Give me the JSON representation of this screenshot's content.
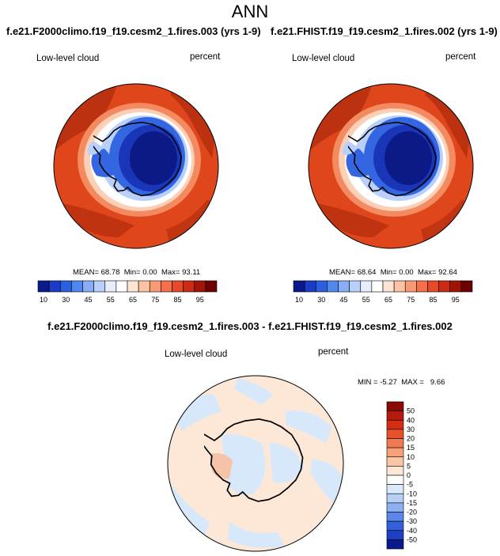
{
  "header": {
    "title": "ANN"
  },
  "panels": [
    {
      "case": "f.e21.F2000climo.f19_f19.cesm2_1.fires.003 (yrs 1-9)",
      "variable": "Low-level cloud",
      "units": "percent",
      "stats": {
        "mean_label": "MEAN=",
        "mean": "68.78",
        "min_label": "Min=",
        "min": "0.00",
        "max_label": "Max=",
        "max": "93.11"
      }
    },
    {
      "case": "f.e21.FHIST.f19_f19.cesm2_1.fires.002 (yrs 1-9)",
      "variable": "Low-level cloud",
      "units": "percent",
      "stats": {
        "mean_label": "MEAN=",
        "mean": "68.64",
        "min_label": "Min=",
        "min": "0.00",
        "max_label": "Max=",
        "max": "92.64"
      }
    }
  ],
  "difference": {
    "title": "f.e21.F2000climo.f19_f19.cesm2_1.fires.003 - f.e21.FHIST.f19_f19.cesm2_1.fires.002",
    "variable": "Low-level cloud",
    "units": "percent",
    "stats": {
      "min_label": "MIN =",
      "min": "-5.27",
      "max_label": "MAX =",
      "max": "9.66"
    }
  },
  "chart_data": [
    {
      "type": "heatmap",
      "projection": "south-polar-stereographic",
      "title": "Low-level cloud",
      "units": "percent",
      "colorbar": {
        "orientation": "horizontal",
        "ticks": [
          "10",
          "30",
          "45",
          "55",
          "65",
          "75",
          "85",
          "95"
        ],
        "colors": [
          "#0a1a8c",
          "#1a3cc8",
          "#2a5fe0",
          "#4f86f0",
          "#86adf5",
          "#b9d0fa",
          "#e6eefc",
          "#ffffff",
          "#fde3d2",
          "#fbc2a3",
          "#f89a73",
          "#f3704a",
          "#e84a28",
          "#cc2a12",
          "#a01408",
          "#6e0202"
        ]
      },
      "stats": {
        "mean": 68.78,
        "min": 0.0,
        "max": 93.11
      },
      "colors": {
        "ocean": "#e0461c",
        "high_band": "#b8300f",
        "antarctic_interior": "#0b1a86",
        "coast": "#3466e2"
      }
    },
    {
      "type": "heatmap",
      "projection": "south-polar-stereographic",
      "title": "Low-level cloud",
      "units": "percent",
      "colorbar": {
        "orientation": "horizontal",
        "ticks": [
          "10",
          "30",
          "45",
          "55",
          "65",
          "75",
          "85",
          "95"
        ],
        "colors": [
          "#0a1a8c",
          "#1a3cc8",
          "#2a5fe0",
          "#4f86f0",
          "#86adf5",
          "#b9d0fa",
          "#e6eefc",
          "#ffffff",
          "#fde3d2",
          "#fbc2a3",
          "#f89a73",
          "#f3704a",
          "#e84a28",
          "#cc2a12",
          "#a01408",
          "#6e0202"
        ]
      },
      "stats": {
        "mean": 68.64,
        "min": 0.0,
        "max": 92.64
      },
      "colors": {
        "ocean": "#e0461c",
        "high_band": "#b8300f",
        "antarctic_interior": "#0b1a86",
        "coast": "#3466e2"
      }
    },
    {
      "type": "heatmap",
      "projection": "south-polar-stereographic",
      "title": "Low-level cloud",
      "units": "percent",
      "colorbar": {
        "orientation": "vertical",
        "ticks": [
          "50",
          "40",
          "30",
          "20",
          "15",
          "10",
          "5",
          "0",
          "-5",
          "-10",
          "-15",
          "-20",
          "-30",
          "-40",
          "-50"
        ],
        "colors": [
          "#8c0a04",
          "#b51a0c",
          "#d32e14",
          "#e8512e",
          "#f27a52",
          "#f7a07a",
          "#fbc6a6",
          "#fde6d6",
          "#ffffff",
          "#dce9fb",
          "#b8d0f7",
          "#8cb0f2",
          "#5a88ea",
          "#3560dc",
          "#1c3fc4",
          "#0a1a8c"
        ]
      },
      "stats": {
        "min": -5.27,
        "max": 9.66
      },
      "colors": {
        "positive": "#fde8d8",
        "negative": "#d8e8fb",
        "warm_patch": "#f5c4a8"
      }
    }
  ]
}
